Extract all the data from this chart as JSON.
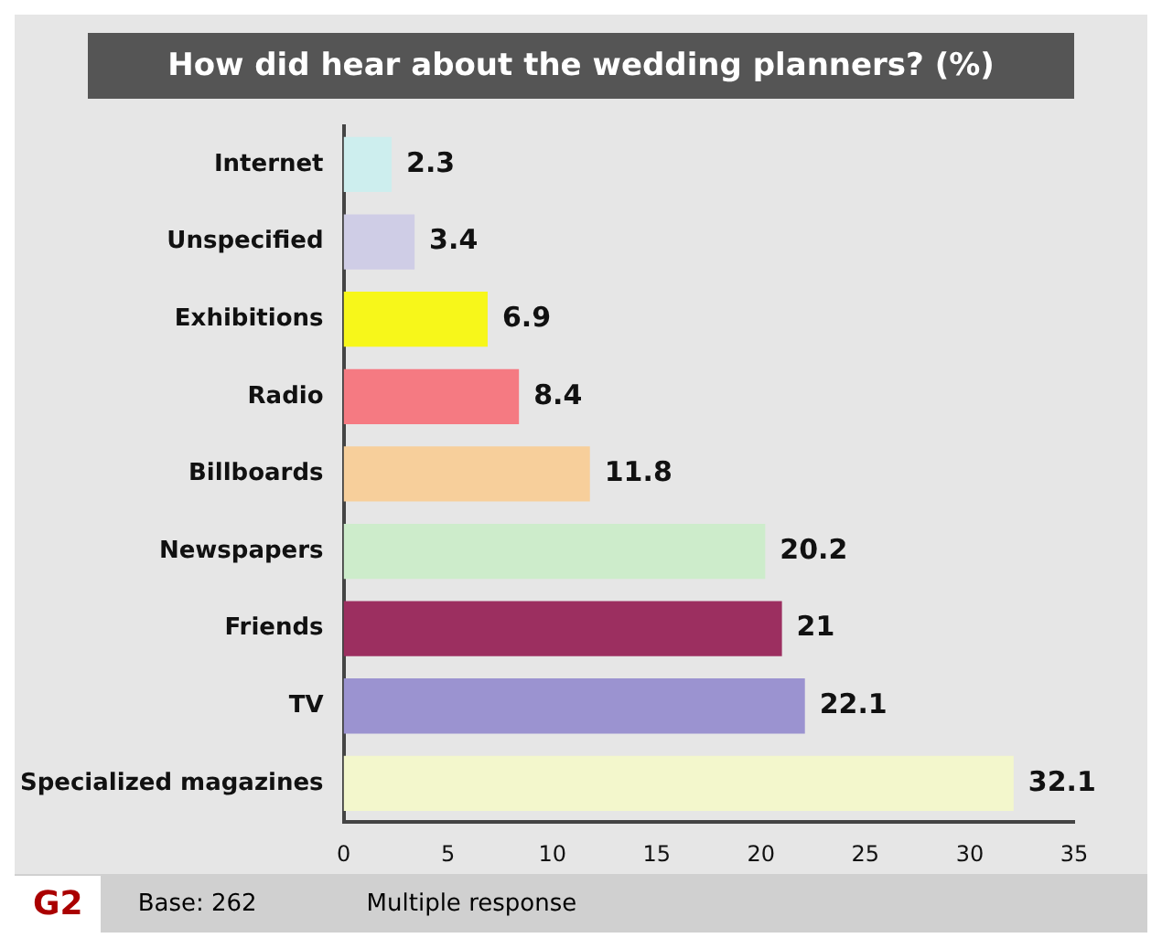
{
  "chart_data": {
    "type": "bar",
    "orientation": "horizontal",
    "title": "How did hear about the wedding planners? (%)",
    "categories": [
      "Internet",
      "Unspecified",
      "Exhibitions",
      "Radio",
      "Billboards",
      "Newspapers",
      "Friends",
      "TV",
      "Specialized magazines"
    ],
    "values": [
      2.3,
      3.4,
      6.9,
      8.4,
      11.8,
      20.2,
      21,
      22.1,
      32.1
    ],
    "colors": [
      "#cdeeee",
      "#cfcde6",
      "#f7f71a",
      "#f57a82",
      "#f7cf9b",
      "#cdeccb",
      "#9c2f60",
      "#9b93d0",
      "#f3f7cc"
    ],
    "xlim": [
      0,
      35
    ],
    "xticks": [
      0,
      5,
      10,
      15,
      20,
      25,
      30,
      35
    ],
    "grid": false,
    "data_labels": true,
    "annotations": [
      "G2",
      "Base: 262",
      "Multiple response"
    ]
  }
}
